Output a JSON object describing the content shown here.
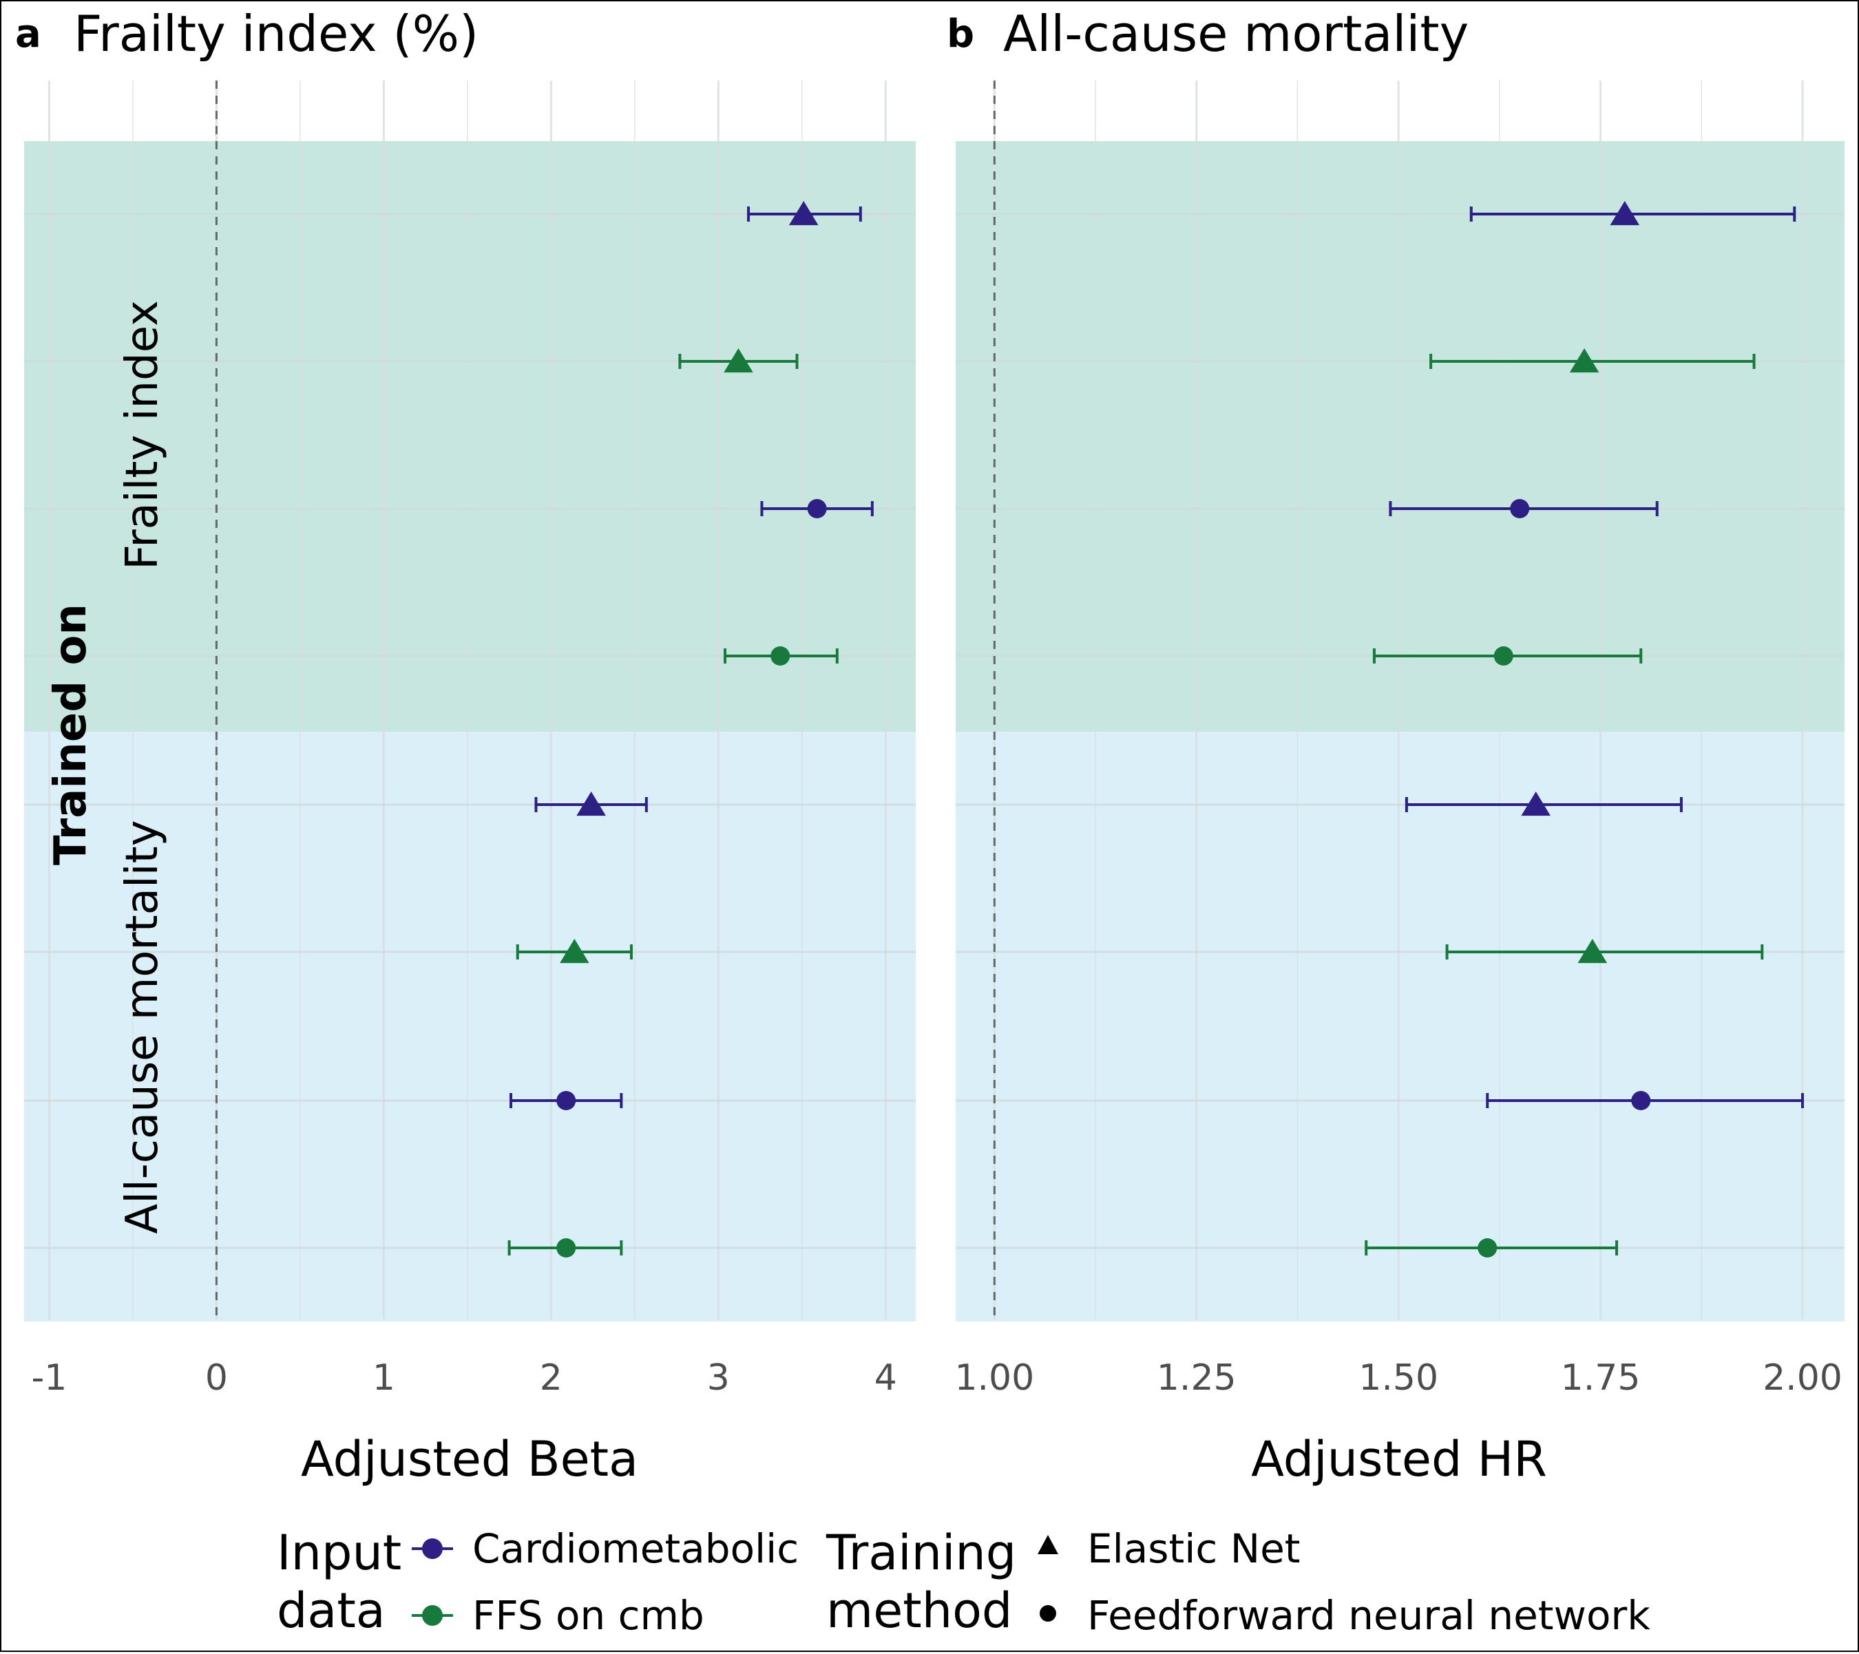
{
  "colors": {
    "Cardiometabolic": "#2e1f84",
    "FFS on cmb": "#177a3c",
    "band_frailty": "#c7e6e0",
    "band_mortality": "#dbeff8",
    "grid": "#d9dde0",
    "tick": "#4d4d4d"
  },
  "row_labels": {
    "trained_on": "Trained on",
    "groups": [
      "Frailty index",
      "All-cause mortality"
    ]
  },
  "legend": {
    "input_title": "Input\ndata",
    "input_items": [
      {
        "label": "Cardiometabolic",
        "color": "#2e1f84",
        "icon": "circle-with-line"
      },
      {
        "label": "FFS on cmb",
        "color": "#177a3c",
        "icon": "circle-with-line"
      }
    ],
    "method_title": "Training\nmethod",
    "method_items": [
      {
        "label": "Elastic Net",
        "icon": "triangle"
      },
      {
        "label": "Feedforward neural network",
        "icon": "circle"
      }
    ]
  },
  "chart_data": [
    {
      "type": "scatter",
      "panel_letter": "a",
      "title": "Frailty index (%)",
      "xlabel": "Adjusted Beta",
      "ylabel": "Trained on",
      "xlim": [
        -1.15,
        4.18
      ],
      "xticks": [
        -1,
        0,
        1,
        2,
        3,
        4
      ],
      "xtick_labels": [
        "-1",
        "0",
        "1",
        "2",
        "3",
        "4"
      ],
      "reference_line": 0,
      "grid": true,
      "points": [
        {
          "group": "Frailty index",
          "input": "Cardiometabolic",
          "method": "Elastic Net",
          "est": 3.51,
          "lo": 3.18,
          "hi": 3.85
        },
        {
          "group": "Frailty index",
          "input": "FFS on cmb",
          "method": "Elastic Net",
          "est": 3.12,
          "lo": 2.77,
          "hi": 3.47
        },
        {
          "group": "Frailty index",
          "input": "Cardiometabolic",
          "method": "Feedforward neural network",
          "est": 3.59,
          "lo": 3.26,
          "hi": 3.92
        },
        {
          "group": "Frailty index",
          "input": "FFS on cmb",
          "method": "Feedforward neural network",
          "est": 3.37,
          "lo": 3.04,
          "hi": 3.71
        },
        {
          "group": "All-cause mortality",
          "input": "Cardiometabolic",
          "method": "Elastic Net",
          "est": 2.24,
          "lo": 1.91,
          "hi": 2.57
        },
        {
          "group": "All-cause mortality",
          "input": "FFS on cmb",
          "method": "Elastic Net",
          "est": 2.14,
          "lo": 1.8,
          "hi": 2.48
        },
        {
          "group": "All-cause mortality",
          "input": "Cardiometabolic",
          "method": "Feedforward neural network",
          "est": 2.09,
          "lo": 1.76,
          "hi": 2.42
        },
        {
          "group": "All-cause mortality",
          "input": "FFS on cmb",
          "method": "Feedforward neural network",
          "est": 2.09,
          "lo": 1.75,
          "hi": 2.42
        }
      ]
    },
    {
      "type": "scatter",
      "panel_letter": "b",
      "title": "All-cause mortality",
      "xlabel": "Adjusted HR",
      "xlim": [
        0.952,
        2.052
      ],
      "xticks": [
        1.0,
        1.25,
        1.5,
        1.75,
        2.0
      ],
      "xtick_labels": [
        "1.00",
        "1.25",
        "1.50",
        "1.75",
        "2.00"
      ],
      "reference_line": 1.0,
      "grid": true,
      "points": [
        {
          "group": "Frailty index",
          "input": "Cardiometabolic",
          "method": "Elastic Net",
          "est": 1.78,
          "lo": 1.59,
          "hi": 1.99
        },
        {
          "group": "Frailty index",
          "input": "FFS on cmb",
          "method": "Elastic Net",
          "est": 1.73,
          "lo": 1.54,
          "hi": 1.94
        },
        {
          "group": "Frailty index",
          "input": "Cardiometabolic",
          "method": "Feedforward neural network",
          "est": 1.65,
          "lo": 1.49,
          "hi": 1.82
        },
        {
          "group": "Frailty index",
          "input": "FFS on cmb",
          "method": "Feedforward neural network",
          "est": 1.63,
          "lo": 1.47,
          "hi": 1.8
        },
        {
          "group": "All-cause mortality",
          "input": "Cardiometabolic",
          "method": "Elastic Net",
          "est": 1.67,
          "lo": 1.51,
          "hi": 1.85
        },
        {
          "group": "All-cause mortality",
          "input": "FFS on cmb",
          "method": "Elastic Net",
          "est": 1.74,
          "lo": 1.56,
          "hi": 1.95
        },
        {
          "group": "All-cause mortality",
          "input": "Cardiometabolic",
          "method": "Feedforward neural network",
          "est": 1.8,
          "lo": 1.61,
          "hi": 2.0
        },
        {
          "group": "All-cause mortality",
          "input": "FFS on cmb",
          "method": "Feedforward neural network",
          "est": 1.61,
          "lo": 1.46,
          "hi": 1.77
        }
      ]
    }
  ]
}
